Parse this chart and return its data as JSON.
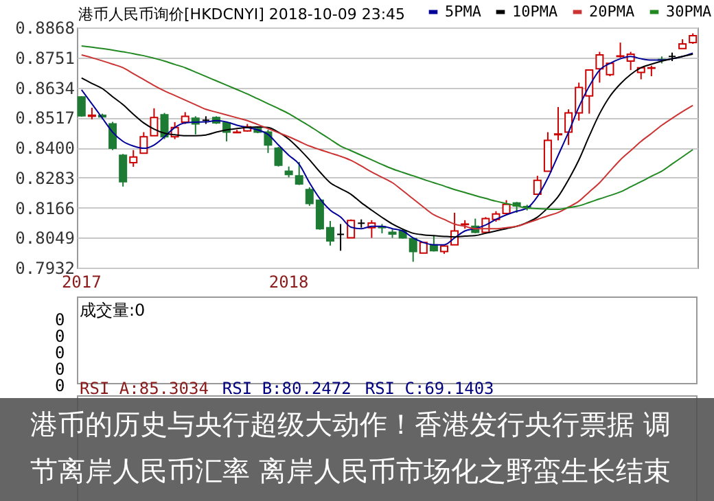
{
  "chart_data": [
    {
      "type": "candlestick",
      "title": "港币人民币询价[HKDCNYI] 2018-10-09 23:45",
      "categories": [
        "2017",
        null,
        null,
        null,
        null,
        null,
        null,
        null,
        null,
        null,
        null,
        null,
        null,
        null,
        null,
        null,
        null,
        null,
        null,
        null,
        "2018",
        null,
        null,
        null,
        null,
        null,
        null,
        null,
        null,
        null,
        null,
        null,
        null,
        null,
        null,
        null,
        null,
        null,
        null,
        null,
        null,
        null,
        null,
        null,
        null,
        null,
        null,
        null,
        null,
        null,
        null,
        null,
        null,
        null,
        null,
        null,
        null,
        null,
        null,
        null
      ],
      "ohlc": [
        [
          0.8597,
          0.86,
          0.852,
          0.8524
        ],
        [
          0.8522,
          0.8555,
          0.851,
          0.8526
        ],
        [
          0.8526,
          0.8532,
          0.851,
          0.852
        ],
        [
          0.8492,
          0.85,
          0.839,
          0.8397
        ],
        [
          0.837,
          0.8375,
          0.8248,
          0.8267
        ],
        [
          0.8341,
          0.839,
          0.8325,
          0.8363
        ],
        [
          0.8378,
          0.846,
          0.8378,
          0.8442
        ],
        [
          0.8446,
          0.8553,
          0.8446,
          0.8517
        ],
        [
          0.8528,
          0.8535,
          0.8433,
          0.8442
        ],
        [
          0.8442,
          0.8499,
          0.8433,
          0.8478
        ],
        [
          0.8499,
          0.8538,
          0.8492,
          0.8522
        ],
        [
          0.8514,
          0.8522,
          0.8451,
          0.8492
        ],
        [
          0.8506,
          0.8522,
          0.8492,
          0.8506
        ],
        [
          0.8517,
          0.8522,
          0.8492,
          0.8496
        ],
        [
          0.8496,
          0.8499,
          0.8424,
          0.846
        ],
        [
          0.8458,
          0.8469,
          0.8456,
          0.846
        ],
        [
          0.8465,
          0.8492,
          0.8462,
          0.8481
        ],
        [
          0.8474,
          0.8481,
          0.8456,
          0.846
        ],
        [
          0.846,
          0.8469,
          0.8379,
          0.841
        ],
        [
          0.8397,
          0.8403,
          0.8326,
          0.8331
        ],
        [
          0.8308,
          0.8326,
          0.8284,
          0.8295
        ],
        [
          0.829,
          0.8344,
          0.8254,
          0.8258
        ],
        [
          0.8236,
          0.8245,
          0.8173,
          0.8182
        ],
        [
          0.8195,
          0.8195,
          0.808,
          0.8084
        ],
        [
          0.8088,
          0.8114,
          0.8018,
          0.8036
        ],
        [
          0.8062,
          0.8102,
          0.7998,
          0.8062
        ],
        [
          0.8048,
          0.812,
          0.8048,
          0.8116
        ],
        [
          0.8105,
          0.812,
          0.8088,
          0.8105
        ],
        [
          0.8088,
          0.8117,
          0.8048,
          0.8106
        ],
        [
          0.8091,
          0.8102,
          0.8066,
          0.8088
        ],
        [
          0.807,
          0.8081,
          0.8048,
          0.8063
        ],
        [
          0.8075,
          0.8084,
          0.8045,
          0.8048
        ],
        [
          0.8045,
          0.8048,
          0.7955,
          0.7995
        ],
        [
          0.7989,
          0.803,
          0.7989,
          0.803
        ],
        [
          0.8021,
          0.8057,
          0.7995,
          0.7998
        ],
        [
          0.7995,
          0.8021,
          0.7986,
          0.8016
        ],
        [
          0.8021,
          0.8146,
          0.8021,
          0.8075
        ],
        [
          0.81,
          0.8117,
          0.8084,
          0.8102
        ],
        [
          0.8093,
          0.8123,
          0.8066,
          0.807
        ],
        [
          0.807,
          0.8129,
          0.807,
          0.8123
        ],
        [
          0.812,
          0.8152,
          0.8111,
          0.8141
        ],
        [
          0.8143,
          0.8195,
          0.8143,
          0.8179
        ],
        [
          0.8184,
          0.8188,
          0.8146,
          0.8173
        ],
        [
          0.817,
          0.8177,
          0.8155,
          0.8168
        ],
        [
          0.8218,
          0.829,
          0.8218,
          0.8272
        ],
        [
          0.8308,
          0.846,
          0.8308,
          0.8428
        ],
        [
          0.845,
          0.8558,
          0.8428,
          0.8453
        ],
        [
          0.846,
          0.8549,
          0.841,
          0.8535
        ],
        [
          0.8535,
          0.8653,
          0.8505,
          0.8634
        ],
        [
          0.8601,
          0.8702,
          0.8532,
          0.8702
        ],
        [
          0.8707,
          0.8773,
          0.8653,
          0.8761
        ],
        [
          0.8684,
          0.8728,
          0.8678,
          0.8728
        ],
        [
          0.8755,
          0.8809,
          0.875,
          0.8757
        ],
        [
          0.8737,
          0.8773,
          0.8702,
          0.8764
        ],
        [
          0.8693,
          0.8711,
          0.8666,
          0.8711
        ],
        [
          0.8709,
          0.8719,
          0.8678,
          0.8711
        ],
        [
          0.8743,
          0.8755,
          0.8728,
          0.8741
        ],
        [
          0.8755,
          0.877,
          0.8737,
          0.8755
        ],
        [
          0.8786,
          0.8822,
          0.8786,
          0.8804
        ],
        [
          0.8809,
          0.8845,
          0.8804,
          0.8836
        ]
      ],
      "colors": [
        "#1e7b34",
        "#cc0000",
        "#1e7b34",
        "#1e7b34",
        "#1e7b34",
        "#cc0000",
        "#cc0000",
        "#cc0000",
        "#1e7b34",
        "#cc0000",
        "#cc0000",
        "#1e7b34",
        "#000000",
        "#1e7b34",
        "#1e7b34",
        "#cc0000",
        "#cc0000",
        "#1e7b34",
        "#1e7b34",
        "#1e7b34",
        "#1e7b34",
        "#1e7b34",
        "#1e7b34",
        "#1e7b34",
        "#1e7b34",
        "#000000",
        "#cc0000",
        "#000000",
        "#cc0000",
        "#1e7b34",
        "#1e7b34",
        "#1e7b34",
        "#1e7b34",
        "#cc0000",
        "#1e7b34",
        "#cc0000",
        "#cc0000",
        "#cc0000",
        "#1e7b34",
        "#cc0000",
        "#cc0000",
        "#cc0000",
        "#1e7b34",
        "#1e7b34",
        "#cc0000",
        "#cc0000",
        "#cc0000",
        "#cc0000",
        "#cc0000",
        "#cc0000",
        "#cc0000",
        "#cc0000",
        "#cc0000",
        "#cc0000",
        "#cc0000",
        "#cc0000",
        "#1e7b34",
        "#000000",
        "#cc0000",
        "#cc0000"
      ],
      "series": [
        {
          "name": "5PMA",
          "type": "line",
          "color": "#000099",
          "values": [
            0.8625,
            0.857,
            0.8515,
            0.846,
            0.8424,
            0.8406,
            0.8397,
            0.841,
            0.8442,
            0.8478,
            0.8496,
            0.8499,
            0.85,
            0.8505,
            0.85,
            0.8487,
            0.8478,
            0.8469,
            0.8451,
            0.841,
            0.837,
            0.8335,
            0.8263,
            0.8201,
            0.8156,
            0.8129,
            0.809,
            0.8084,
            0.8093,
            0.8093,
            0.8084,
            0.8075,
            0.8048,
            0.803,
            0.8021,
            0.8021,
            0.8048,
            0.8075,
            0.8084,
            0.8098,
            0.812,
            0.8138,
            0.8152,
            0.8164,
            0.8209,
            0.8281,
            0.837,
            0.846,
            0.8558,
            0.8639,
            0.8702,
            0.8728,
            0.8746,
            0.8755,
            0.8746,
            0.8741,
            0.8741,
            0.8746,
            0.8755,
            0.8768
          ]
        },
        {
          "name": "10PMA",
          "type": "line",
          "color": "#000000",
          "values": [
            0.8671,
            0.865,
            0.863,
            0.8598,
            0.8567,
            0.853,
            0.8496,
            0.8472,
            0.8456,
            0.845,
            0.8446,
            0.8446,
            0.8449,
            0.846,
            0.8469,
            0.8474,
            0.8478,
            0.848,
            0.8478,
            0.846,
            0.8433,
            0.8395,
            0.8352,
            0.8305,
            0.8263,
            0.824,
            0.8218,
            0.8185,
            0.8156,
            0.8128,
            0.8102,
            0.8082,
            0.8066,
            0.806,
            0.8057,
            0.8054,
            0.8052,
            0.8055,
            0.8057,
            0.8066,
            0.8075,
            0.8084,
            0.8093,
            0.8108,
            0.8129,
            0.8165,
            0.8209,
            0.8275,
            0.8352,
            0.8445,
            0.8532,
            0.86,
            0.8648,
            0.8685,
            0.8711,
            0.8725,
            0.8737,
            0.8746,
            0.8755,
            0.8764
          ]
        },
        {
          "name": "20PMA",
          "type": "line",
          "color": "#cc3333",
          "values": [
            0.8761,
            0.875,
            0.8738,
            0.8725,
            0.8711,
            0.8688,
            0.8665,
            0.8642,
            0.8621,
            0.8603,
            0.8585,
            0.8567,
            0.8549,
            0.8538,
            0.8527,
            0.8516,
            0.8505,
            0.849,
            0.8474,
            0.8458,
            0.8442,
            0.8424,
            0.8406,
            0.8392,
            0.8379,
            0.8366,
            0.835,
            0.8328,
            0.8305,
            0.8284,
            0.8263,
            0.8232,
            0.82,
            0.8168,
            0.8138,
            0.812,
            0.8102,
            0.8093,
            0.8084,
            0.8084,
            0.8084,
            0.8088,
            0.8093,
            0.8106,
            0.812,
            0.8134,
            0.8147,
            0.8168,
            0.8191,
            0.8227,
            0.8263,
            0.8308,
            0.8352,
            0.8388,
            0.8424,
            0.8455,
            0.8487,
            0.8514,
            0.854,
            0.8564
          ]
        },
        {
          "name": "30PMA",
          "type": "line",
          "color": "#228822",
          "values": [
            0.8796,
            0.8791,
            0.8786,
            0.878,
            0.8773,
            0.8766,
            0.8758,
            0.8748,
            0.8737,
            0.8724,
            0.8711,
            0.8694,
            0.8677,
            0.866,
            0.8643,
            0.8626,
            0.8609,
            0.859,
            0.8571,
            0.8552,
            0.8532,
            0.8508,
            0.8484,
            0.8458,
            0.8432,
            0.8406,
            0.8388,
            0.837,
            0.8352,
            0.8334,
            0.8317,
            0.8303,
            0.829,
            0.8276,
            0.8263,
            0.825,
            0.8236,
            0.8225,
            0.8213,
            0.8202,
            0.8191,
            0.8182,
            0.8173,
            0.8164,
            0.8162,
            0.816,
            0.8159,
            0.8166,
            0.8173,
            0.8186,
            0.82,
            0.8213,
            0.8227,
            0.8247,
            0.8267,
            0.8288,
            0.8308,
            0.8336,
            0.8364,
            0.8392
          ]
        }
      ],
      "ylim": [
        0.7932,
        0.8868
      ],
      "yticks": [
        0.7932,
        0.8049,
        0.8166,
        0.8283,
        {
          "value": 0.84,
          "label": "0.8400"
        },
        0.8517,
        0.8634,
        0.8751,
        0.8868
      ],
      "grid": "y",
      "legend": "top right",
      "annotations": [
        "港币的历史与央行超级大动作！香港发行央行票据 调节离岸人民币汇率 离岸人民币市场化之野蛮生长结束"
      ]
    },
    {
      "type": "other",
      "title": "成交量:0",
      "annotations": [
        "0",
        "0",
        "0",
        "0",
        "0"
      ]
    },
    {
      "type": "other",
      "annotations": [
        "RSI A:85.3034",
        "RSI B:80.2472",
        "RSI C:69.1403"
      ]
    }
  ]
}
